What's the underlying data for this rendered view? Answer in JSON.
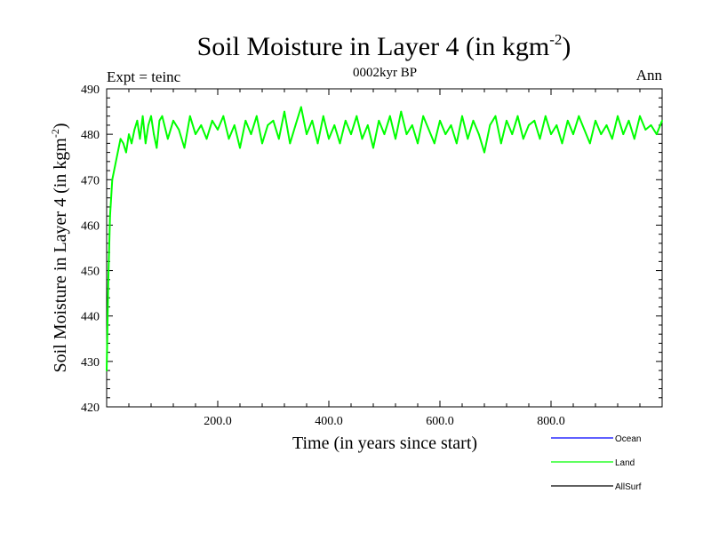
{
  "chart_data": {
    "type": "line",
    "title": "Soil Moisture in Layer 4 (in kgm",
    "title_sup": "-2",
    "title_close": ")",
    "subtitle": "0002kyr BP",
    "left_label": "Expt = teinc",
    "right_label": "Ann",
    "xlabel": "Time (in years since start)",
    "ylabel": "Soil Moisture in Layer 4 (in kgm",
    "ylabel_sup": "-2",
    "ylabel_close": ")",
    "xlim": [
      0,
      1000
    ],
    "ylim": [
      420,
      490
    ],
    "x_ticks": [
      200,
      400,
      600,
      800
    ],
    "x_tick_labels": [
      "200.0",
      "400.0",
      "600.0",
      "800.0"
    ],
    "y_ticks": [
      420,
      430,
      440,
      450,
      460,
      470,
      480,
      490
    ],
    "y_tick_labels": [
      "420",
      "430",
      "440",
      "450",
      "460",
      "470",
      "480",
      "490"
    ],
    "legend": [
      {
        "name": "Ocean",
        "color": "#0000ff"
      },
      {
        "name": "Land",
        "color": "#00ff00"
      },
      {
        "name": "AllSurf",
        "color": "#000000"
      }
    ],
    "series": [
      {
        "name": "Land",
        "color": "#00ff00",
        "x": [
          0,
          3,
          6,
          10,
          15,
          20,
          25,
          30,
          35,
          40,
          45,
          50,
          55,
          60,
          65,
          70,
          75,
          80,
          85,
          90,
          95,
          100,
          110,
          120,
          130,
          140,
          150,
          160,
          170,
          180,
          190,
          200,
          210,
          220,
          230,
          240,
          250,
          260,
          270,
          280,
          290,
          300,
          310,
          320,
          330,
          340,
          350,
          360,
          370,
          380,
          390,
          400,
          410,
          420,
          430,
          440,
          450,
          460,
          470,
          480,
          490,
          500,
          510,
          520,
          530,
          540,
          550,
          560,
          570,
          580,
          590,
          600,
          610,
          620,
          630,
          640,
          650,
          660,
          670,
          680,
          690,
          700,
          710,
          720,
          730,
          740,
          750,
          760,
          770,
          780,
          790,
          800,
          810,
          820,
          830,
          840,
          850,
          860,
          870,
          880,
          890,
          900,
          910,
          920,
          930,
          940,
          950,
          960,
          970,
          980,
          990,
          1000
        ],
        "values": [
          428,
          448,
          462,
          470,
          473,
          476,
          479,
          478,
          476,
          480,
          478,
          481,
          483,
          479,
          484,
          478,
          482,
          484,
          480,
          477,
          483,
          484,
          479,
          483,
          481,
          477,
          484,
          480,
          482,
          479,
          483,
          481,
          484,
          479,
          482,
          477,
          483,
          480,
          484,
          478,
          482,
          483,
          479,
          485,
          478,
          482,
          486,
          480,
          483,
          478,
          484,
          479,
          482,
          478,
          483,
          480,
          484,
          479,
          482,
          477,
          483,
          480,
          484,
          479,
          485,
          480,
          482,
          478,
          484,
          481,
          478,
          483,
          480,
          482,
          478,
          484,
          479,
          483,
          480,
          476,
          482,
          484,
          478,
          483,
          480,
          484,
          479,
          482,
          483,
          479,
          484,
          480,
          482,
          478,
          483,
          480,
          484,
          481,
          478,
          483,
          480,
          482,
          479,
          484,
          480,
          483,
          479,
          484,
          481,
          482,
          480,
          483
        ]
      }
    ]
  }
}
